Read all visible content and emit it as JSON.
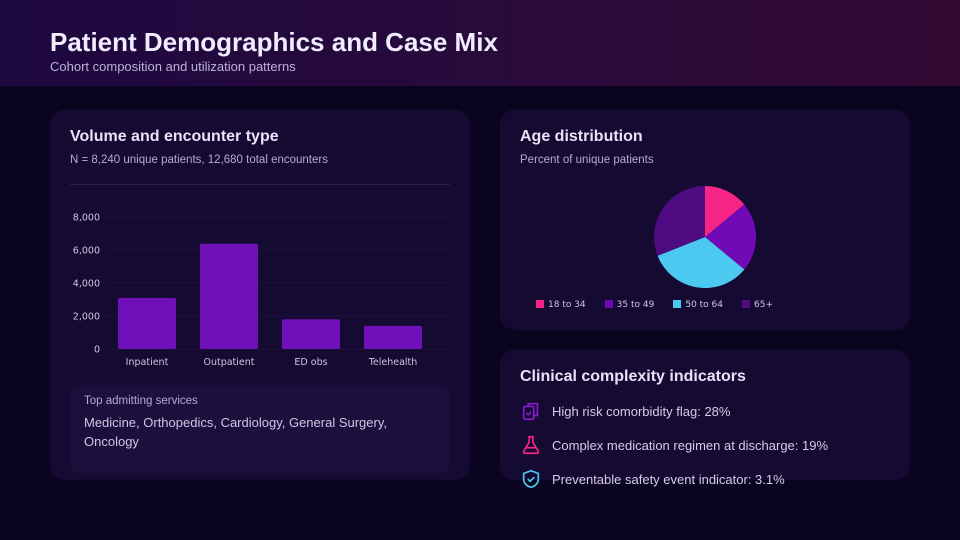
{
  "header": {
    "title": "Patient Demographics and Case Mix",
    "subtitle": "Cohort composition and utilization patterns"
  },
  "volume": {
    "title": "Volume and encounter type",
    "subtitle": "N = 8,240 unique patients, 12,680 total encounters",
    "services_label": "Top admitting services",
    "services_value": "Medicine, Orthopedics, Cardiology, General Surgery, Oncology"
  },
  "age": {
    "title": "Age distribution",
    "subtitle": "Percent of unique patients"
  },
  "complexity": {
    "title": "Clinical complexity indicators",
    "items": [
      {
        "icon": "clipboard-check-icon",
        "text": "High risk comorbidity flag: 28%"
      },
      {
        "icon": "flask-icon",
        "text": "Complex medication regimen at discharge: 19%"
      },
      {
        "icon": "shield-check-icon",
        "text": "Preventable safety event indicator: 3.1%"
      }
    ]
  },
  "chart_data": [
    {
      "type": "bar",
      "title": "Volume and encounter type",
      "categories": [
        "Inpatient",
        "Outpatient",
        "ED obs",
        "Telehealth"
      ],
      "values": [
        3100,
        6380,
        1800,
        1400
      ],
      "ylim": [
        0,
        8000
      ],
      "yticks": [
        "0",
        "2,000",
        "4,000",
        "6,000",
        "8,000"
      ],
      "color": "#7010b8"
    },
    {
      "type": "pie",
      "title": "Age distribution",
      "categories": [
        "18 to 34",
        "35 to 49",
        "50 to 64",
        "65+"
      ],
      "values": [
        14,
        22,
        33,
        31
      ],
      "colors": [
        "#f72585",
        "#7209b7",
        "#4cc9f0",
        "#4f0b82"
      ]
    }
  ]
}
